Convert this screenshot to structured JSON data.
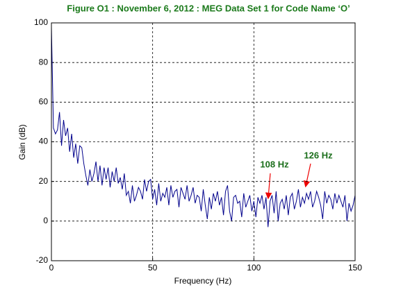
{
  "chart_data": {
    "type": "line",
    "title": "Figure O1 : November 6, 2012 : MEG Data Set 1 for Code Name ‘O’",
    "xlabel": "Frequency (Hz)",
    "ylabel": "Gain (dB)",
    "x": [
      0,
      1,
      2,
      3,
      4,
      5,
      6,
      7,
      8,
      9,
      10,
      11,
      12,
      13,
      14,
      15,
      16,
      17,
      18,
      19,
      20,
      21,
      22,
      23,
      24,
      25,
      26,
      27,
      28,
      29,
      30,
      31,
      32,
      33,
      34,
      35,
      36,
      37,
      38,
      39,
      40,
      41,
      42,
      43,
      44,
      45,
      46,
      47,
      48,
      49,
      50,
      51,
      52,
      53,
      54,
      55,
      56,
      57,
      58,
      59,
      60,
      61,
      62,
      63,
      64,
      65,
      66,
      67,
      68,
      69,
      70,
      71,
      72,
      73,
      74,
      75,
      76,
      77,
      78,
      79,
      80,
      81,
      82,
      83,
      84,
      85,
      86,
      87,
      88,
      89,
      90,
      91,
      92,
      93,
      94,
      95,
      96,
      97,
      98,
      99,
      100,
      101,
      102,
      103,
      104,
      105,
      106,
      107,
      108,
      109,
      110,
      111,
      112,
      113,
      114,
      115,
      116,
      117,
      118,
      119,
      120,
      121,
      122,
      123,
      124,
      125,
      126,
      127,
      128,
      129,
      130,
      131,
      132,
      133,
      134,
      135,
      136,
      137,
      138,
      139,
      140,
      141,
      142,
      143,
      144,
      145,
      146,
      147,
      148,
      149,
      150
    ],
    "series": [
      {
        "name": "Gain",
        "color": "#00008b",
        "values": [
          98,
          47,
          44,
          46,
          55,
          38,
          51,
          43,
          47,
          35,
          44,
          32,
          39,
          29,
          38,
          37,
          29,
          23,
          18,
          26,
          20,
          24,
          30,
          20,
          28,
          18,
          27,
          21,
          27,
          17,
          25,
          20,
          27,
          19,
          22,
          16,
          24,
          13,
          15,
          9,
          18,
          10,
          13,
          17,
          15,
          11,
          21,
          15,
          20,
          21,
          11,
          16,
          8,
          19,
          10,
          14,
          12,
          17,
          8,
          18,
          12,
          15,
          16,
          7,
          17,
          14,
          11,
          18,
          10,
          13,
          17,
          9,
          13,
          12,
          5,
          16,
          8,
          1,
          12,
          6,
          14,
          10,
          15,
          8,
          12,
          3,
          15,
          18,
          5,
          0,
          12,
          13,
          9,
          10,
          2,
          14,
          7,
          10,
          13,
          5,
          10,
          2,
          12,
          9,
          13,
          6,
          12,
          -3,
          10,
          13,
          4,
          15,
          0,
          9,
          11,
          6,
          13,
          3,
          12,
          14,
          6,
          10,
          16,
          7,
          12,
          9,
          14,
          11,
          15,
          7,
          10,
          15,
          12,
          8,
          1,
          15,
          9,
          13,
          11,
          6,
          14,
          9,
          13,
          10,
          7,
          13,
          0,
          9,
          5,
          8,
          13
        ]
      }
    ],
    "xlim": [
      0,
      150
    ],
    "xticks": [
      0,
      50,
      100,
      150
    ],
    "ylim": [
      -20,
      100
    ],
    "yticks": [
      -20,
      0,
      20,
      40,
      60,
      80,
      100
    ],
    "grid": true,
    "annotations": [
      "108 Hz",
      "126 Hz"
    ]
  }
}
